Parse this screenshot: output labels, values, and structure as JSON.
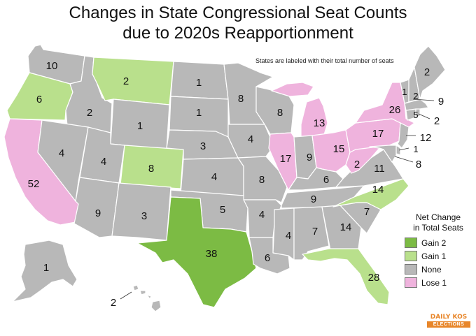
{
  "title": {
    "line1": "Changes in State Congressional Seat Counts",
    "line2": "due to 2020s Reapportionment"
  },
  "note": "States are labeled with their total number of seats",
  "colors": {
    "gain2": "#7cbb44",
    "gain1": "#b9e08c",
    "none": "#b8b8b8",
    "lose1": "#efb3dd",
    "ocean_bg": "#ffffff",
    "border": "#ffffff"
  },
  "legend": {
    "title_line1": "Net Change",
    "title_line2": "in Total Seats",
    "items": [
      {
        "key": "gain2",
        "label": "Gain 2"
      },
      {
        "key": "gain1",
        "label": "Gain 1"
      },
      {
        "key": "none",
        "label": "None"
      },
      {
        "key": "lose1",
        "label": "Lose 1"
      }
    ]
  },
  "logo": {
    "top": "DAILY KOS",
    "bottom": "ELECTIONS"
  },
  "states": [
    {
      "abbr": "WA",
      "seats": "10",
      "change": "none"
    },
    {
      "abbr": "OR",
      "seats": "6",
      "change": "gain1"
    },
    {
      "abbr": "CA",
      "seats": "52",
      "change": "lose1"
    },
    {
      "abbr": "ID",
      "seats": "2",
      "change": "none"
    },
    {
      "abbr": "NV",
      "seats": "4",
      "change": "none"
    },
    {
      "abbr": "MT",
      "seats": "2",
      "change": "gain1"
    },
    {
      "abbr": "WY",
      "seats": "1",
      "change": "none"
    },
    {
      "abbr": "UT",
      "seats": "4",
      "change": "none"
    },
    {
      "abbr": "AZ",
      "seats": "9",
      "change": "none"
    },
    {
      "abbr": "CO",
      "seats": "8",
      "change": "gain1"
    },
    {
      "abbr": "NM",
      "seats": "3",
      "change": "none"
    },
    {
      "abbr": "ND",
      "seats": "1",
      "change": "none"
    },
    {
      "abbr": "SD",
      "seats": "1",
      "change": "none"
    },
    {
      "abbr": "NE",
      "seats": "3",
      "change": "none"
    },
    {
      "abbr": "KS",
      "seats": "4",
      "change": "none"
    },
    {
      "abbr": "OK",
      "seats": "5",
      "change": "none"
    },
    {
      "abbr": "TX",
      "seats": "38",
      "change": "gain2"
    },
    {
      "abbr": "MN",
      "seats": "8",
      "change": "none"
    },
    {
      "abbr": "IA",
      "seats": "4",
      "change": "none"
    },
    {
      "abbr": "MO",
      "seats": "8",
      "change": "none"
    },
    {
      "abbr": "AR",
      "seats": "4",
      "change": "none"
    },
    {
      "abbr": "LA",
      "seats": "6",
      "change": "none"
    },
    {
      "abbr": "WI",
      "seats": "8",
      "change": "none"
    },
    {
      "abbr": "IL",
      "seats": "17",
      "change": "lose1"
    },
    {
      "abbr": "MI",
      "seats": "13",
      "change": "lose1"
    },
    {
      "abbr": "IN",
      "seats": "9",
      "change": "none"
    },
    {
      "abbr": "OH",
      "seats": "15",
      "change": "lose1"
    },
    {
      "abbr": "KY",
      "seats": "6",
      "change": "none"
    },
    {
      "abbr": "TN",
      "seats": "9",
      "change": "none"
    },
    {
      "abbr": "MS",
      "seats": "4",
      "change": "none"
    },
    {
      "abbr": "AL",
      "seats": "7",
      "change": "none"
    },
    {
      "abbr": "GA",
      "seats": "14",
      "change": "none"
    },
    {
      "abbr": "FL",
      "seats": "28",
      "change": "gain1"
    },
    {
      "abbr": "SC",
      "seats": "7",
      "change": "none"
    },
    {
      "abbr": "NC",
      "seats": "14",
      "change": "gain1"
    },
    {
      "abbr": "VA",
      "seats": "11",
      "change": "none"
    },
    {
      "abbr": "WV",
      "seats": "2",
      "change": "lose1"
    },
    {
      "abbr": "PA",
      "seats": "17",
      "change": "lose1"
    },
    {
      "abbr": "NY",
      "seats": "26",
      "change": "lose1"
    },
    {
      "abbr": "VT",
      "seats": "1",
      "change": "none"
    },
    {
      "abbr": "NH",
      "seats": "2",
      "change": "none"
    },
    {
      "abbr": "ME",
      "seats": "2",
      "change": "none"
    },
    {
      "abbr": "MA",
      "seats": "9",
      "change": "none"
    },
    {
      "abbr": "CT",
      "seats": "5",
      "change": "none"
    },
    {
      "abbr": "RI",
      "seats": "2",
      "change": "none"
    },
    {
      "abbr": "NJ",
      "seats": "12",
      "change": "none"
    },
    {
      "abbr": "DE",
      "seats": "1",
      "change": "none"
    },
    {
      "abbr": "MD",
      "seats": "8",
      "change": "none"
    },
    {
      "abbr": "AK",
      "seats": "1",
      "change": "none"
    },
    {
      "abbr": "HI",
      "seats": "2",
      "change": "none"
    }
  ]
}
